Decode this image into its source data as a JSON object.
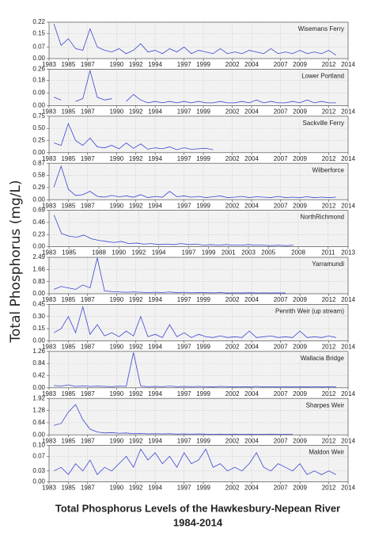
{
  "y_label": "Total Phosphorus  (mg/L)",
  "title": "Total Phosphorus Levels of the Hawkesbury-Nepean River",
  "subtitle": "1984-2014",
  "chart_data": [
    {
      "type": "line",
      "title": "Wisemans Ferry",
      "color": "#3a46d0",
      "grid": true,
      "x": [
        1983.5,
        1984.25,
        1985,
        1985.75,
        1986.5,
        1987.25,
        1988,
        1988.75,
        1989.5,
        1990.25,
        1991,
        1991.75,
        1992.5,
        1993.25,
        1994,
        1994.75,
        1995.5,
        1996.25,
        1997,
        1997.75,
        1998.5,
        1999.25,
        2000,
        2000.75,
        2001.5,
        2002.25,
        2003,
        2003.75,
        2004.5,
        2005.25,
        2006,
        2006.75,
        2007.5,
        2008.25,
        2009,
        2009.75,
        2010.5,
        2011.25,
        2012,
        2012.75
      ],
      "values": [
        0.21,
        0.08,
        0.12,
        0.06,
        0.05,
        0.18,
        0.07,
        0.05,
        0.04,
        0.06,
        0.03,
        0.05,
        0.09,
        0.04,
        0.05,
        0.03,
        0.06,
        0.04,
        0.07,
        0.03,
        0.05,
        0.04,
        0.03,
        0.06,
        0.03,
        0.04,
        0.03,
        0.05,
        0.04,
        0.03,
        0.06,
        0.03,
        0.04,
        0.03,
        0.05,
        0.03,
        0.04,
        0.03,
        0.05,
        0.02
      ],
      "xlim": [
        1983,
        2014
      ],
      "xticks": [
        1983,
        1985,
        1987,
        1990,
        1992,
        1994,
        1997,
        1999,
        2002,
        2004,
        2007,
        2009,
        2012,
        2014
      ],
      "ylim": [
        0,
        0.22
      ],
      "yticks": [
        {
          "value": 0,
          "label": "0.00"
        },
        0.07,
        0.15,
        0.22
      ]
    },
    {
      "type": "line",
      "title": "Lower Portland",
      "color": "#3a46d0",
      "grid": true,
      "x": [
        1983.5,
        1984.25,
        1985,
        1985.75,
        1986.5,
        1987.25,
        1988,
        1988.75,
        1989.5,
        1990.25,
        1991,
        1991.75,
        1992.5,
        1993.25,
        1994,
        1994.75,
        1995.5,
        1996.25,
        1997,
        1997.75,
        1998.5,
        1999.25,
        2000,
        2000.75,
        2001.5,
        2002.25,
        2003,
        2003.75,
        2004.5,
        2005.25,
        2006,
        2006.75,
        2007.5,
        2008.25,
        2009,
        2009.75,
        2010.5,
        2011.25,
        2012,
        2012.75
      ],
      "values": [
        0.06,
        0.04,
        null,
        0.03,
        0.05,
        0.25,
        0.06,
        0.04,
        0.05,
        null,
        0.03,
        0.08,
        0.04,
        0.02,
        0.03,
        0.02,
        0.03,
        0.02,
        0.03,
        0.02,
        0.03,
        0.02,
        0.02,
        0.03,
        0.02,
        0.02,
        0.03,
        0.02,
        0.04,
        0.02,
        0.03,
        0.02,
        0.02,
        0.03,
        0.02,
        0.04,
        0.02,
        0.03,
        0.02,
        0.02
      ],
      "xlim": [
        1983,
        2014
      ],
      "xticks": [
        1983,
        1985,
        1987,
        1990,
        1992,
        1994,
        1997,
        1999,
        2002,
        2004,
        2007,
        2009,
        2012,
        2014
      ],
      "ylim": [
        0,
        0.26
      ],
      "yticks": [
        {
          "value": 0,
          "label": "0.00"
        },
        0.09,
        0.18,
        0.26
      ]
    },
    {
      "type": "line",
      "title": "Sackville Ferry",
      "color": "#3a46d0",
      "grid": true,
      "x": [
        1983.5,
        1984.25,
        1985,
        1985.75,
        1986.5,
        1987.25,
        1988,
        1988.75,
        1989.5,
        1990.25,
        1991,
        1991.75,
        1992.5,
        1993.25,
        1994,
        1994.75,
        1995.5,
        1996.25,
        1997,
        1997.75,
        1998.5,
        1999.25,
        2000,
        2000.75,
        2001.5,
        2002.25,
        2003,
        2003.75,
        2004.5,
        2005.25,
        2006,
        2006.75,
        2007.5,
        2008.25,
        2009,
        2009.75,
        2010.5,
        2011.25,
        2012,
        2012.75
      ],
      "values": [
        0.2,
        0.15,
        0.6,
        0.25,
        0.15,
        0.3,
        0.12,
        0.1,
        0.15,
        0.08,
        0.2,
        0.09,
        0.18,
        0.07,
        0.1,
        0.08,
        0.12,
        0.06,
        0.1,
        0.07,
        0.08,
        0.09,
        0.06,
        null,
        null,
        null,
        null,
        null,
        null,
        null,
        null,
        null,
        null,
        null,
        null,
        null,
        null,
        null,
        null,
        null
      ],
      "xlim": [
        1983,
        2014
      ],
      "xticks": [
        1983,
        1985,
        1987,
        1990,
        1992,
        1994,
        1997,
        1999,
        2002,
        2004,
        2007,
        2009,
        2012,
        2014
      ],
      "ylim": [
        0,
        0.75
      ],
      "yticks": [
        {
          "value": 0,
          "label": "0.00"
        },
        0.25,
        {
          "value": 0.5,
          "label": "0.50"
        },
        0.75
      ]
    },
    {
      "type": "line",
      "title": "Wilberforce",
      "color": "#3a46d0",
      "grid": true,
      "x": [
        1983.5,
        1984.25,
        1985,
        1985.75,
        1986.5,
        1987.25,
        1988,
        1988.75,
        1989.5,
        1990.25,
        1991,
        1991.75,
        1992.5,
        1993.25,
        1994,
        1994.75,
        1995.5,
        1996.25,
        1997,
        1997.75,
        1998.5,
        1999.25,
        2000,
        2000.75,
        2001.5,
        2002.25,
        2003,
        2003.75,
        2004.5,
        2005.25,
        2006,
        2006.75,
        2007.5,
        2008.25,
        2009,
        2009.75,
        2010.5,
        2011.25,
        2012,
        2012.75
      ],
      "values": [
        0.3,
        0.8,
        0.25,
        0.1,
        0.12,
        0.2,
        0.08,
        0.06,
        0.1,
        0.07,
        0.09,
        0.06,
        0.12,
        0.05,
        0.08,
        0.06,
        0.2,
        0.07,
        0.09,
        0.06,
        0.08,
        0.05,
        0.07,
        0.09,
        0.05,
        0.06,
        0.08,
        0.05,
        0.07,
        0.06,
        0.05,
        0.08,
        0.05,
        0.06,
        0.05,
        0.07,
        0.05,
        0.06,
        0.05,
        0.06
      ],
      "xlim": [
        1983,
        2014
      ],
      "xticks": [
        1983,
        1985,
        1987,
        1990,
        1992,
        1994,
        1997,
        1999,
        2002,
        2004,
        2007,
        2009,
        2012,
        2014
      ],
      "ylim": [
        0,
        0.87
      ],
      "yticks": [
        {
          "value": 0,
          "label": "0.00"
        },
        0.29,
        0.58,
        0.87
      ]
    },
    {
      "type": "line",
      "title": "NorthRichmond",
      "color": "#3a46d0",
      "grid": true,
      "x": [
        1983.5,
        1984.25,
        1985,
        1985.75,
        1986.5,
        1987.25,
        1988,
        1988.75,
        1989.5,
        1990.25,
        1991,
        1991.75,
        1992.5,
        1993.25,
        1994,
        1994.75,
        1995.5,
        1996.25,
        1997,
        1997.75,
        1998.5,
        1999.25,
        2000,
        2000.75,
        2001.5,
        2002.25,
        2003,
        2003.75,
        2004.5,
        2005.25,
        2006,
        2006.75,
        2007.5,
        2008.25,
        2009,
        2009.75,
        2010.5,
        2011.25,
        2012,
        2012.75
      ],
      "values": [
        0.6,
        0.25,
        0.2,
        0.18,
        0.22,
        0.15,
        0.12,
        0.1,
        0.08,
        0.1,
        0.06,
        0.07,
        0.05,
        0.06,
        0.04,
        0.05,
        0.04,
        0.06,
        0.04,
        0.05,
        0.03,
        0.04,
        0.03,
        0.04,
        0.03,
        0.03,
        0.04,
        0.03,
        0.03,
        0.02,
        0.03,
        0.02,
        0.03,
        null,
        null,
        null,
        null,
        null,
        null,
        null
      ],
      "xlim": [
        1983,
        2013
      ],
      "xticks": [
        1983,
        1985,
        1988,
        1990,
        1992,
        1994,
        1997,
        1999,
        2001,
        2003,
        2005,
        2008,
        2011,
        2013
      ],
      "ylim": [
        0,
        0.69
      ],
      "yticks": [
        {
          "value": 0,
          "label": "0.00"
        },
        0.23,
        0.46,
        0.69
      ]
    },
    {
      "type": "line",
      "title": "Yarramundi",
      "color": "#3a46d0",
      "grid": true,
      "x": [
        1983.5,
        1984.25,
        1985,
        1985.75,
        1986.5,
        1987.25,
        1988,
        1988.75,
        1989.5,
        1990.25,
        1991,
        1991.75,
        1992.5,
        1993.25,
        1994,
        1994.75,
        1995.5,
        1996.25,
        1997,
        1997.75,
        1998.5,
        1999.25,
        2000,
        2000.75,
        2001.5,
        2002.25,
        2003,
        2003.75,
        2004.5,
        2005.25,
        2006,
        2006.75,
        2007.5,
        2008.25,
        2009,
        2009.75,
        2010.5,
        2011.25,
        2012,
        2012.75
      ],
      "values": [
        0.3,
        0.5,
        0.4,
        0.3,
        0.6,
        0.4,
        2.45,
        0.2,
        0.15,
        0.12,
        0.1,
        0.12,
        0.1,
        0.08,
        0.1,
        0.08,
        0.12,
        0.07,
        0.1,
        0.06,
        0.08,
        0.07,
        0.06,
        0.08,
        0.05,
        0.06,
        0.05,
        0.07,
        0.05,
        0.06,
        0.05,
        0.06,
        0.05,
        null,
        null,
        null,
        null,
        null,
        null,
        null
      ],
      "xlim": [
        1983,
        2014
      ],
      "xticks": [
        1983,
        1985,
        1987,
        1990,
        1992,
        1994,
        1997,
        1999,
        2002,
        2004,
        2007,
        2009,
        2012,
        2014
      ],
      "ylim": [
        0,
        2.49
      ],
      "yticks": [
        {
          "value": 0,
          "label": "0.00"
        },
        0.83,
        1.66,
        2.49
      ]
    },
    {
      "type": "line",
      "title": "Penrith Weir (up stream)",
      "color": "#3a46d0",
      "grid": true,
      "x": [
        1983.5,
        1984.25,
        1985,
        1985.75,
        1986.5,
        1987.25,
        1988,
        1988.75,
        1989.5,
        1990.25,
        1991,
        1991.75,
        1992.5,
        1993.25,
        1994,
        1994.75,
        1995.5,
        1996.25,
        1997,
        1997.75,
        1998.5,
        1999.25,
        2000,
        2000.75,
        2001.5,
        2002.25,
        2003,
        2003.75,
        2004.5,
        2005.25,
        2006,
        2006.75,
        2007.5,
        2008.25,
        2009,
        2009.75,
        2010.5,
        2011.25,
        2012,
        2012.75
      ],
      "values": [
        0.1,
        0.15,
        0.3,
        0.1,
        0.42,
        0.08,
        0.2,
        0.06,
        0.1,
        0.05,
        0.12,
        0.06,
        0.3,
        0.05,
        0.08,
        0.04,
        0.2,
        0.05,
        0.1,
        0.04,
        0.08,
        0.05,
        0.04,
        0.06,
        0.04,
        0.05,
        0.04,
        0.12,
        0.04,
        0.05,
        0.06,
        0.04,
        0.05,
        0.04,
        0.12,
        0.04,
        0.05,
        0.04,
        0.06,
        0.04
      ],
      "xlim": [
        1983,
        2014
      ],
      "xticks": [
        1983,
        1985,
        1987,
        1990,
        1992,
        1994,
        1997,
        1999,
        2002,
        2004,
        2007,
        2009,
        2012,
        2014
      ],
      "ylim": [
        0,
        0.45
      ],
      "yticks": [
        {
          "value": 0,
          "label": "0.00"
        },
        0.15,
        {
          "value": 0.3,
          "label": "0.30"
        },
        0.45
      ]
    },
    {
      "type": "line",
      "title": "Wallacia Bridge",
      "color": "#3a46d0",
      "grid": true,
      "x": [
        1983.5,
        1984.25,
        1985,
        1985.75,
        1986.5,
        1987.25,
        1988,
        1988.75,
        1989.5,
        1990.25,
        1991,
        1991.75,
        1992.5,
        1993.25,
        1994,
        1994.75,
        1995.5,
        1996.25,
        1997,
        1997.75,
        1998.5,
        1999.25,
        2000,
        2000.75,
        2001.5,
        2002.25,
        2003,
        2003.75,
        2004.5,
        2005.25,
        2006,
        2006.75,
        2007.5,
        2008.25,
        2009,
        2009.75,
        2010.5,
        2011.25,
        2012,
        2012.75
      ],
      "values": [
        0.08,
        0.06,
        0.1,
        0.05,
        0.07,
        0.05,
        0.06,
        0.05,
        0.04,
        0.06,
        0.05,
        1.22,
        0.06,
        0.04,
        0.05,
        0.04,
        0.06,
        0.04,
        0.05,
        0.04,
        0.05,
        0.04,
        0.03,
        0.05,
        0.04,
        0.03,
        0.04,
        0.03,
        0.05,
        0.03,
        0.04,
        0.03,
        0.04,
        0.03,
        0.04,
        0.03,
        0.04,
        0.03,
        0.04,
        0.03
      ],
      "xlim": [
        1983,
        2014
      ],
      "xticks": [
        1983,
        1985,
        1987,
        1990,
        1992,
        1994,
        1997,
        1999,
        2002,
        2004,
        2007,
        2009,
        2012,
        2014
      ],
      "ylim": [
        0,
        1.26
      ],
      "yticks": [
        {
          "value": 0,
          "label": "0.00"
        },
        0.42,
        0.84,
        1.26
      ]
    },
    {
      "type": "line",
      "title": "Sharpes Weir",
      "color": "#3a46d0",
      "grid": true,
      "x": [
        1983.5,
        1984.25,
        1985,
        1985.75,
        1986.5,
        1987.25,
        1988,
        1988.75,
        1989.5,
        1990.25,
        1991,
        1991.75,
        1992.5,
        1993.25,
        1994,
        1994.75,
        1995.5,
        1996.25,
        1997,
        1997.75,
        1998.5,
        1999.25,
        2000,
        2000.75,
        2001.5,
        2002.25,
        2003,
        2003.75,
        2004.5,
        2005.25,
        2006,
        2006.75,
        2007.5,
        2008.25,
        2009,
        2009.75,
        2010.5,
        2011.25,
        2012,
        2012.75
      ],
      "values": [
        0.5,
        0.6,
        1.2,
        1.6,
        0.8,
        0.3,
        0.15,
        0.1,
        0.12,
        0.08,
        0.1,
        0.06,
        0.08,
        0.05,
        0.06,
        0.05,
        0.06,
        0.04,
        0.05,
        0.04,
        0.05,
        0.04,
        0.03,
        0.04,
        0.03,
        0.04,
        0.03,
        0.04,
        0.03,
        0.03,
        0.04,
        0.03,
        0.03,
        0.03,
        null,
        null,
        null,
        null,
        null,
        null
      ],
      "xlim": [
        1983,
        2014
      ],
      "xticks": [
        1983,
        1985,
        1987,
        1990,
        1992,
        1994,
        1997,
        1999,
        2002,
        2004,
        2007,
        2009,
        2012,
        2014
      ],
      "ylim": [
        0,
        1.92
      ],
      "yticks": [
        {
          "value": 0,
          "label": "0.00"
        },
        0.64,
        1.28,
        1.92
      ]
    },
    {
      "type": "line",
      "title": "Maldon Weir",
      "color": "#3a46d0",
      "grid": true,
      "x": [
        1983.5,
        1984.25,
        1985,
        1985.75,
        1986.5,
        1987.25,
        1988,
        1988.75,
        1989.5,
        1990.25,
        1991,
        1991.75,
        1992.5,
        1993.25,
        1994,
        1994.75,
        1995.5,
        1996.25,
        1997,
        1997.75,
        1998.5,
        1999.25,
        2000,
        2000.75,
        2001.5,
        2002.25,
        2003,
        2003.75,
        2004.5,
        2005.25,
        2006,
        2006.75,
        2007.5,
        2008.25,
        2009,
        2009.75,
        2010.5,
        2011.25,
        2012,
        2012.75
      ],
      "values": [
        0.03,
        0.04,
        0.02,
        0.05,
        0.03,
        0.06,
        0.02,
        0.04,
        0.03,
        0.05,
        0.07,
        0.04,
        0.09,
        0.06,
        0.08,
        0.05,
        0.07,
        0.04,
        0.08,
        0.05,
        0.06,
        0.09,
        0.04,
        0.05,
        0.03,
        0.04,
        0.03,
        0.05,
        0.08,
        0.04,
        0.03,
        0.05,
        0.04,
        0.03,
        0.05,
        0.02,
        0.03,
        0.02,
        0.03,
        0.02
      ],
      "xlim": [
        1983,
        2014
      ],
      "xticks": [
        1983,
        1985,
        1987,
        1990,
        1992,
        1994,
        1997,
        1999,
        2002,
        2004,
        2007,
        2009,
        2012,
        2014
      ],
      "ylim": [
        0,
        0.1
      ],
      "yticks": [
        {
          "value": 0,
          "label": "0.00"
        },
        0.03,
        0.07,
        {
          "value": 0.1,
          "label": "0.10"
        }
      ]
    }
  ]
}
